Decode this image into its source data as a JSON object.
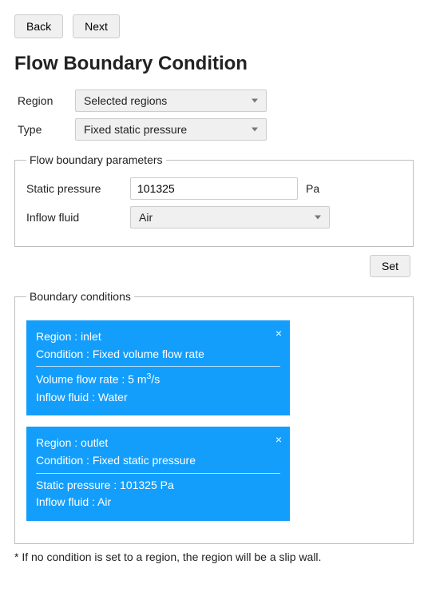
{
  "nav": {
    "back": "Back",
    "next": "Next"
  },
  "title": "Flow Boundary Condition",
  "selectors": {
    "region_label": "Region",
    "region_value": "Selected regions",
    "type_label": "Type",
    "type_value": "Fixed static pressure"
  },
  "params_legend": "Flow boundary parameters",
  "params": {
    "static_pressure_label": "Static pressure",
    "static_pressure_value": "101325",
    "static_pressure_unit": "Pa",
    "inflow_fluid_label": "Inflow fluid",
    "inflow_fluid_value": "Air"
  },
  "set_button": "Set",
  "bc_legend": "Boundary conditions",
  "bc": [
    {
      "region_line": "Region : inlet",
      "condition_line": "Condition : Fixed volume flow rate",
      "value_line_html": "Volume flow rate : 5 m<sup>3</sup>/s",
      "fluid_line": "Inflow fluid : Water"
    },
    {
      "region_line": "Region : outlet",
      "condition_line": "Condition : Fixed static pressure",
      "value_line_html": "Static pressure : 101325 Pa",
      "fluid_line": "Inflow fluid : Air"
    }
  ],
  "footnote": "* If no condition is set to a region, the region will be a slip wall.",
  "colors": {
    "card_bg": "#149efc",
    "card_text": "#ffffff",
    "button_bg": "#f0f0f0",
    "border": "#cccccc"
  }
}
